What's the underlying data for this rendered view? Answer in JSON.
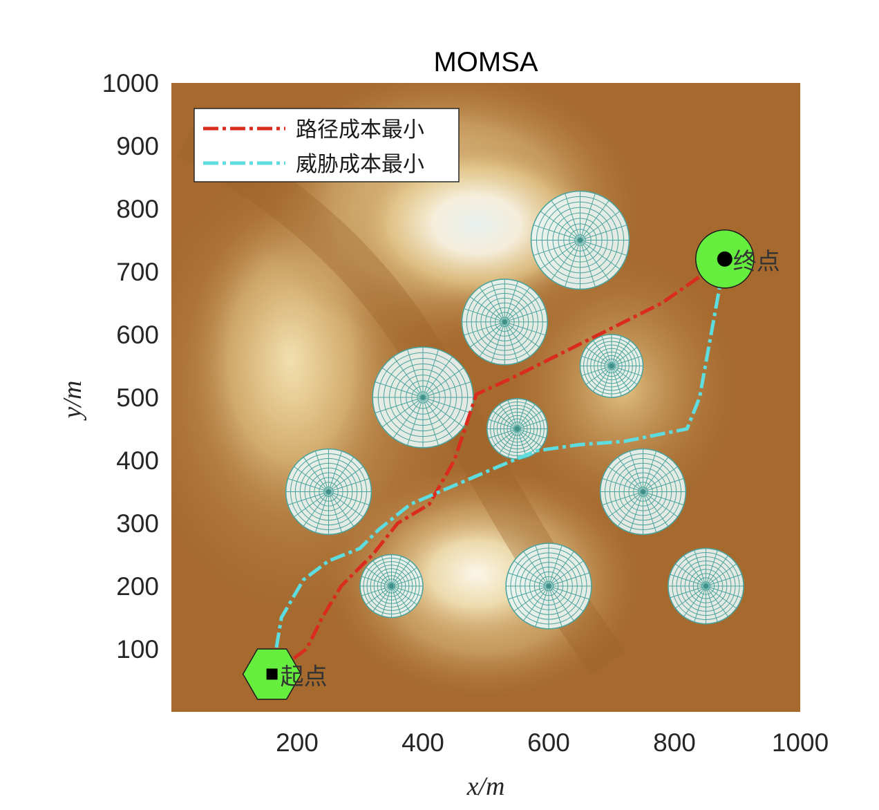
{
  "chart_data": {
    "type": "line",
    "title": "MOMSA",
    "xlabel": "x/m",
    "ylabel": "y/m",
    "xlim": [
      0,
      1000
    ],
    "ylim": [
      0,
      1000
    ],
    "xticks": [
      200,
      400,
      600,
      800,
      1000
    ],
    "yticks": [
      100,
      200,
      300,
      400,
      500,
      600,
      700,
      800,
      900,
      1000
    ],
    "legend_position": "top-left",
    "background": "terrain-colormap",
    "start": {
      "label": "起点",
      "x": 160,
      "y": 60
    },
    "end": {
      "label": "终点",
      "x": 880,
      "y": 720
    },
    "threats": [
      {
        "x": 650,
        "y": 750,
        "r": 78
      },
      {
        "x": 530,
        "y": 620,
        "r": 68
      },
      {
        "x": 700,
        "y": 550,
        "r": 50
      },
      {
        "x": 400,
        "y": 500,
        "r": 80
      },
      {
        "x": 550,
        "y": 450,
        "r": 48
      },
      {
        "x": 250,
        "y": 350,
        "r": 68
      },
      {
        "x": 750,
        "y": 350,
        "r": 68
      },
      {
        "x": 350,
        "y": 200,
        "r": 50
      },
      {
        "x": 600,
        "y": 200,
        "r": 68
      },
      {
        "x": 850,
        "y": 200,
        "r": 60
      }
    ],
    "series": [
      {
        "name": "路径成本最小",
        "color": "#d92b1e",
        "x": [
          160,
          215,
          240,
          270,
          320,
          360,
          410,
          450,
          485,
          540,
          600,
          660,
          720,
          780,
          830,
          880
        ],
        "y": [
          60,
          100,
          150,
          200,
          250,
          300,
          330,
          400,
          505,
          530,
          560,
          590,
          620,
          650,
          685,
          720
        ]
      },
      {
        "name": "威胁成本最小",
        "color": "#5ddde0",
        "x": [
          160,
          175,
          210,
          250,
          300,
          330,
          380,
          450,
          520,
          580,
          650,
          720,
          820,
          840,
          880
        ],
        "y": [
          60,
          150,
          210,
          240,
          260,
          290,
          330,
          360,
          390,
          415,
          425,
          430,
          450,
          500,
          720
        ]
      }
    ]
  }
}
